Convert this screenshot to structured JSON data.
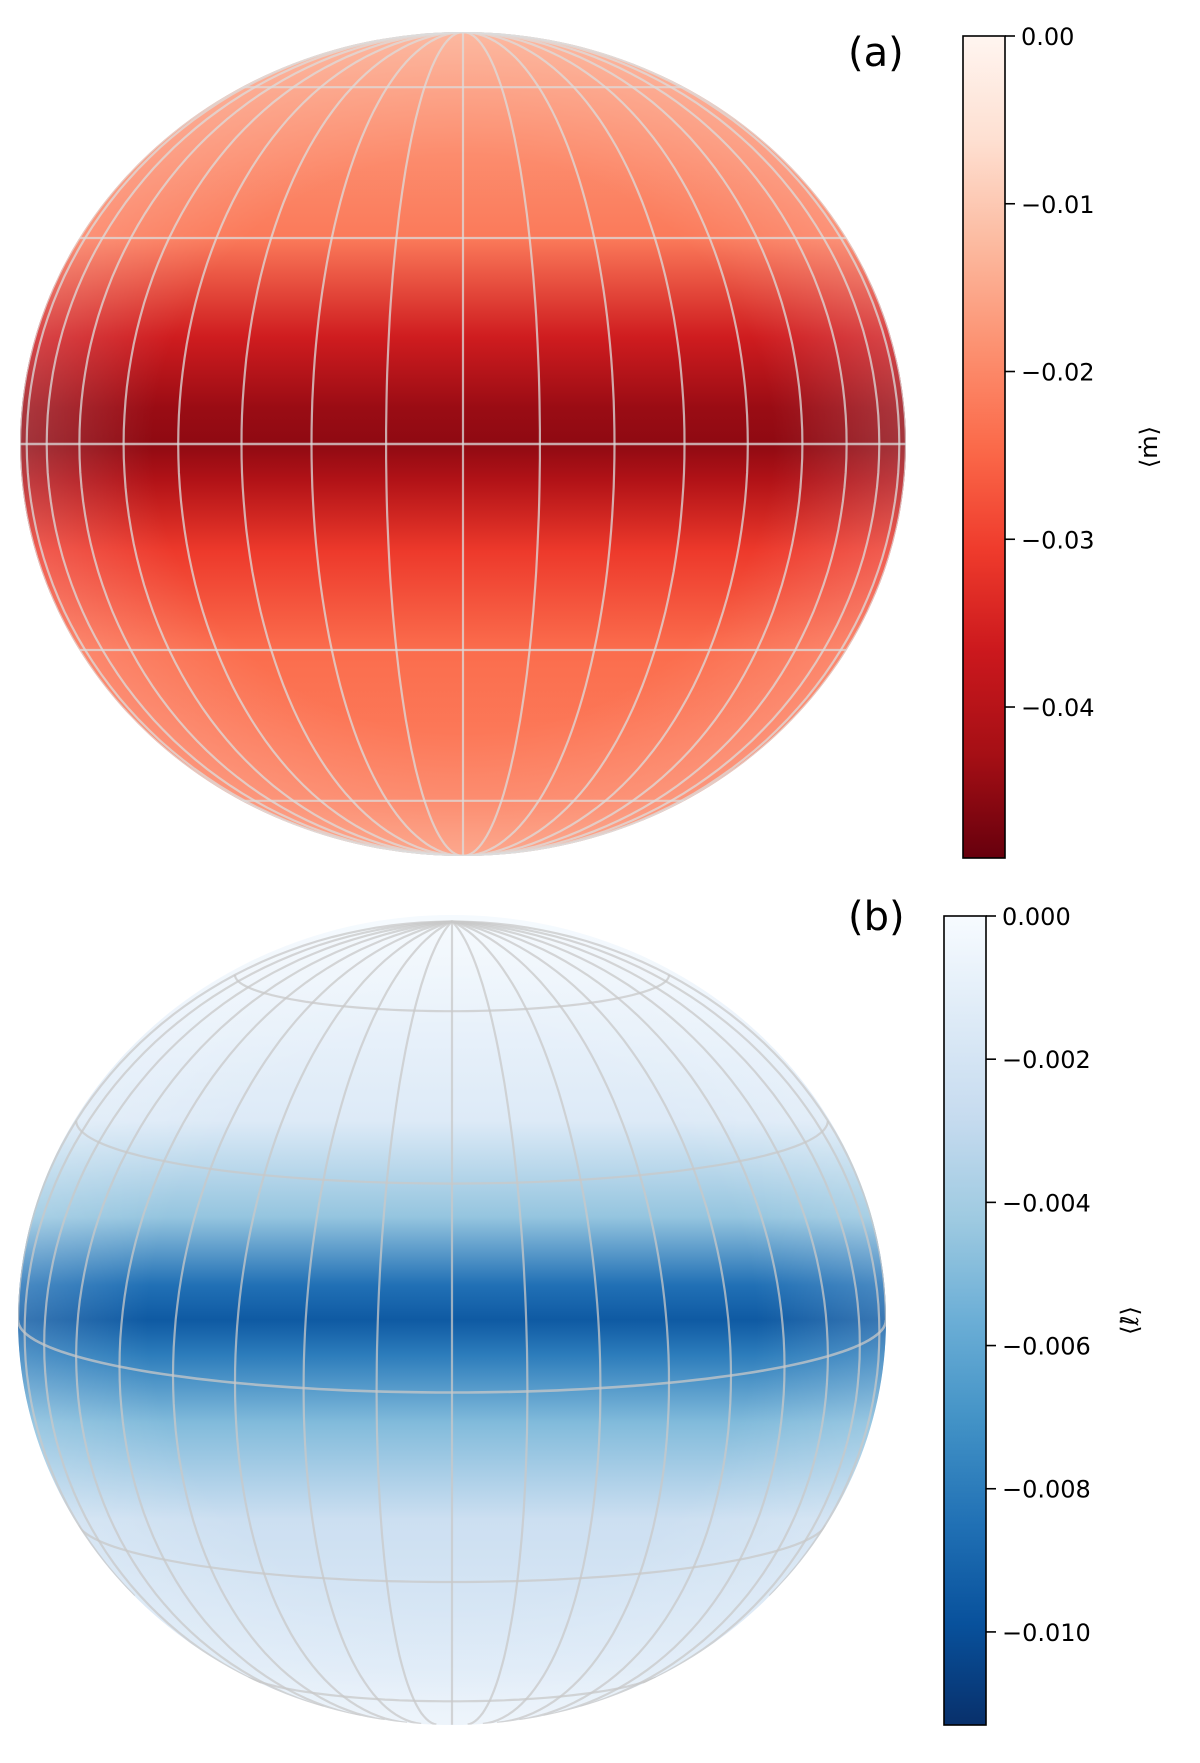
{
  "chart_data": [
    {
      "type": "heatmap",
      "panel_label": "(a)",
      "projection": "orthographic globe with latitude/longitude graticule",
      "colormap": "Reds (reversed: dark red = most negative)",
      "colormap_stops": [
        "#67000d",
        "#a50f15",
        "#cb181d",
        "#ef3b2c",
        "#fb6a4a",
        "#fc9272",
        "#fcbba1",
        "#fee0d2",
        "#fff5f0"
      ],
      "colorbar_label": "⟨ṁ⟩",
      "colorbar_range": [
        -0.049,
        0.0
      ],
      "colorbar_ticks": [
        0.0,
        -0.01,
        -0.02,
        -0.03,
        -0.04
      ],
      "colorbar_tick_labels": [
        "0.00",
        "−0.01",
        "−0.02",
        "−0.03",
        "−0.04"
      ],
      "field_by_latitude": {
        "latitude_deg": [
          90,
          60,
          30,
          15,
          5,
          0,
          -5,
          -15,
          -30,
          -60,
          -90
        ],
        "value": [
          -0.015,
          -0.017,
          -0.022,
          -0.036,
          -0.044,
          -0.045,
          -0.041,
          -0.031,
          -0.024,
          -0.021,
          -0.018
        ]
      },
      "description_features": "Strong negative band concentrated along the equator; weaker values toward the poles; a lighter patch in the upper-left hemisphere."
    },
    {
      "type": "heatmap",
      "panel_label": "(b)",
      "projection": "orthographic globe with latitude/longitude graticule",
      "colormap": "Blues (reversed: dark blue = most negative)",
      "colormap_stops": [
        "#08306b",
        "#08519c",
        "#2171b5",
        "#4292c6",
        "#6baed6",
        "#9ecae1",
        "#c6dbef",
        "#deebf7",
        "#f7fbff"
      ],
      "colorbar_label": "⟨ℓ̇⟩",
      "colorbar_range": [
        -0.0113,
        0.0
      ],
      "colorbar_ticks": [
        0.0,
        -0.002,
        -0.004,
        -0.006,
        -0.008,
        -0.01
      ],
      "colorbar_tick_labels": [
        "0.000",
        "−0.002",
        "−0.004",
        "−0.006",
        "−0.008",
        "−0.010"
      ],
      "field_by_latitude": {
        "latitude_deg": [
          90,
          60,
          30,
          15,
          5,
          0,
          -5,
          -15,
          -30,
          -60,
          -90
        ],
        "value": [
          -0.0002,
          -0.0005,
          -0.0015,
          -0.0045,
          -0.0085,
          -0.0095,
          -0.008,
          -0.005,
          -0.0025,
          -0.0015,
          -0.0008
        ]
      },
      "description_features": "Negative band concentrated along the equator; near-zero values in the polar caps."
    }
  ]
}
